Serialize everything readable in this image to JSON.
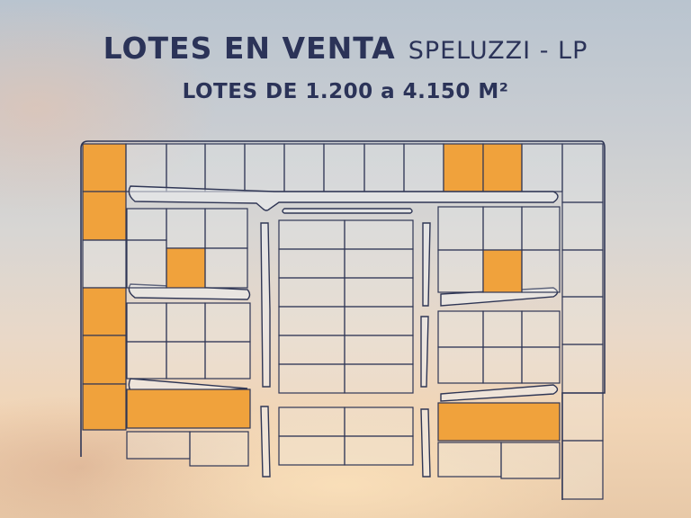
{
  "header": {
    "title": "LOTES EN VENTA",
    "location": "SPELUZZI - LP",
    "subtitle": "LOTES DE 1.200 a 4.150 M²"
  },
  "colors": {
    "text": "#2b3358",
    "lot_outline": "#2f3655",
    "lot_for_sale": "#f0a23c",
    "road": "#eef0f2"
  }
}
